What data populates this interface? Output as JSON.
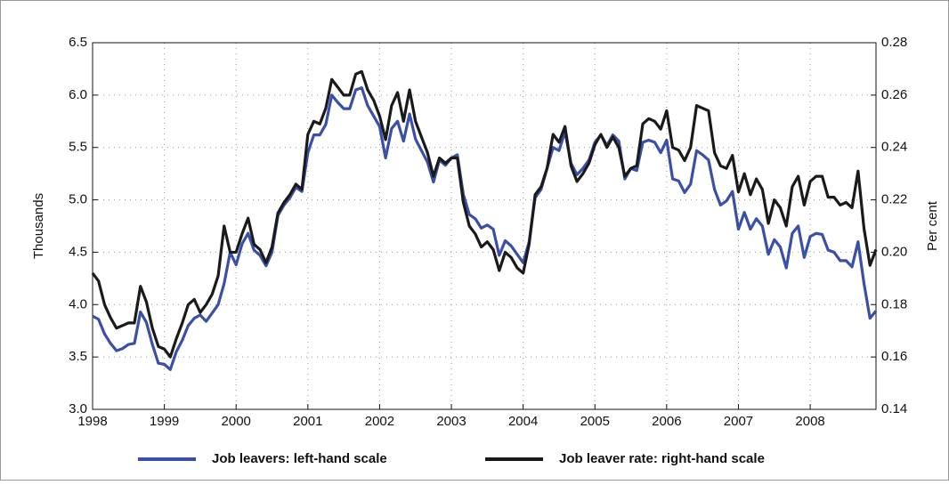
{
  "chart_data": {
    "type": "line",
    "y_label": "Thousands",
    "y2_label": "Per cent",
    "x": [
      1998,
      1998.083,
      1998.167,
      1998.25,
      1998.333,
      1998.417,
      1998.5,
      1998.583,
      1998.667,
      1998.75,
      1998.833,
      1998.917,
      1999,
      1999.083,
      1999.167,
      1999.25,
      1999.333,
      1999.417,
      1999.5,
      1999.583,
      1999.667,
      1999.75,
      1999.833,
      1999.917,
      2000,
      2000.083,
      2000.167,
      2000.25,
      2000.333,
      2000.417,
      2000.5,
      2000.583,
      2000.667,
      2000.75,
      2000.833,
      2000.917,
      2001,
      2001.083,
      2001.167,
      2001.25,
      2001.333,
      2001.417,
      2001.5,
      2001.583,
      2001.667,
      2001.75,
      2001.833,
      2001.917,
      2002,
      2002.083,
      2002.167,
      2002.25,
      2002.333,
      2002.417,
      2002.5,
      2002.583,
      2002.667,
      2002.75,
      2002.833,
      2002.917,
      2003,
      2003.083,
      2003.167,
      2003.25,
      2003.333,
      2003.417,
      2003.5,
      2003.583,
      2003.667,
      2003.75,
      2003.833,
      2003.917,
      2004,
      2004.083,
      2004.167,
      2004.25,
      2004.333,
      2004.417,
      2004.5,
      2004.583,
      2004.667,
      2004.75,
      2004.833,
      2004.917,
      2005,
      2005.083,
      2005.167,
      2005.25,
      2005.333,
      2005.417,
      2005.5,
      2005.583,
      2005.667,
      2005.75,
      2005.833,
      2005.917,
      2006,
      2006.083,
      2006.167,
      2006.25,
      2006.333,
      2006.417,
      2006.5,
      2006.583,
      2006.667,
      2006.75,
      2006.833,
      2006.917,
      2007,
      2007.083,
      2007.167,
      2007.25,
      2007.333,
      2007.417,
      2007.5,
      2007.583,
      2007.667,
      2007.75,
      2007.833,
      2007.917,
      2008,
      2008.083,
      2008.167,
      2008.25,
      2008.333,
      2008.417,
      2008.5,
      2008.583,
      2008.667,
      2008.75,
      2008.833,
      2008.917
    ],
    "series": [
      {
        "name": "Job leavers: left-hand scale",
        "color": "#3a50a8",
        "axis": "y",
        "values": [
          3.89,
          3.86,
          3.72,
          3.63,
          3.56,
          3.58,
          3.62,
          3.63,
          3.93,
          3.83,
          3.62,
          3.44,
          3.43,
          3.38,
          3.55,
          3.66,
          3.8,
          3.87,
          3.9,
          3.84,
          3.92,
          4.0,
          4.2,
          4.5,
          4.38,
          4.58,
          4.68,
          4.52,
          4.47,
          4.37,
          4.5,
          4.85,
          4.95,
          5.02,
          5.12,
          5.08,
          5.45,
          5.62,
          5.62,
          5.72,
          6.0,
          5.93,
          5.87,
          5.87,
          6.05,
          6.07,
          5.9,
          5.8,
          5.7,
          5.4,
          5.68,
          5.75,
          5.56,
          5.82,
          5.58,
          5.47,
          5.36,
          5.17,
          5.38,
          5.33,
          5.4,
          5.43,
          5.05,
          4.86,
          4.82,
          4.73,
          4.76,
          4.72,
          4.47,
          4.61,
          4.56,
          4.48,
          4.4,
          4.6,
          5.02,
          5.1,
          5.3,
          5.5,
          5.47,
          5.65,
          5.35,
          5.24,
          5.3,
          5.38,
          5.55,
          5.62,
          5.52,
          5.62,
          5.56,
          5.2,
          5.3,
          5.28,
          5.55,
          5.57,
          5.55,
          5.45,
          5.57,
          5.2,
          5.18,
          5.07,
          5.15,
          5.47,
          5.43,
          5.38,
          5.1,
          4.95,
          4.99,
          5.08,
          4.72,
          4.88,
          4.72,
          4.82,
          4.75,
          4.48,
          4.62,
          4.55,
          4.35,
          4.68,
          4.75,
          4.45,
          4.65,
          4.68,
          4.67,
          4.52,
          4.5,
          4.42,
          4.42,
          4.36,
          4.6,
          4.2,
          3.87,
          3.94
        ]
      },
      {
        "name": "Job leaver rate: right-hand scale",
        "color": "#1a1a1a",
        "axis": "y2",
        "values": [
          0.192,
          0.189,
          0.18,
          0.175,
          0.171,
          0.172,
          0.173,
          0.173,
          0.187,
          0.181,
          0.171,
          0.164,
          0.163,
          0.16,
          0.167,
          0.173,
          0.18,
          0.182,
          0.177,
          0.18,
          0.184,
          0.191,
          0.21,
          0.2,
          0.2,
          0.207,
          0.213,
          0.203,
          0.201,
          0.196,
          0.202,
          0.215,
          0.219,
          0.222,
          0.226,
          0.224,
          0.245,
          0.25,
          0.249,
          0.255,
          0.266,
          0.263,
          0.26,
          0.26,
          0.268,
          0.269,
          0.262,
          0.258,
          0.252,
          0.243,
          0.256,
          0.261,
          0.25,
          0.262,
          0.25,
          0.244,
          0.238,
          0.229,
          0.236,
          0.234,
          0.236,
          0.236,
          0.219,
          0.21,
          0.207,
          0.202,
          0.204,
          0.201,
          0.193,
          0.2,
          0.198,
          0.194,
          0.192,
          0.203,
          0.222,
          0.225,
          0.232,
          0.245,
          0.242,
          0.248,
          0.233,
          0.227,
          0.23,
          0.234,
          0.241,
          0.245,
          0.24,
          0.244,
          0.24,
          0.229,
          0.232,
          0.233,
          0.249,
          0.251,
          0.25,
          0.247,
          0.254,
          0.24,
          0.239,
          0.235,
          0.24,
          0.256,
          0.255,
          0.254,
          0.238,
          0.233,
          0.232,
          0.237,
          0.223,
          0.23,
          0.222,
          0.228,
          0.224,
          0.211,
          0.22,
          0.217,
          0.21,
          0.225,
          0.229,
          0.218,
          0.227,
          0.229,
          0.229,
          0.221,
          0.221,
          0.218,
          0.219,
          0.217,
          0.231,
          0.209,
          0.195,
          0.201
        ]
      }
    ],
    "xlim": [
      1998,
      2008.917
    ],
    "xticks": [
      1998,
      1999,
      2000,
      2001,
      2002,
      2003,
      2004,
      2005,
      2006,
      2007,
      2008
    ],
    "ylim": [
      3,
      6.5
    ],
    "yticks": [
      {
        "value": 3,
        "label": "3.0"
      },
      3.5,
      {
        "value": 4,
        "label": "4.0"
      },
      4.5,
      {
        "value": 5,
        "label": "5.0"
      },
      5.5,
      {
        "value": 6,
        "label": "6.0"
      },
      6.5
    ],
    "y2lim": [
      0.14,
      0.28
    ],
    "y2ticks": [
      0.14,
      0.16,
      0.18,
      {
        "value": 0.2,
        "label": "0.20"
      },
      0.22,
      0.24,
      0.26,
      0.28
    ],
    "grid": true,
    "legend": "bottom"
  }
}
